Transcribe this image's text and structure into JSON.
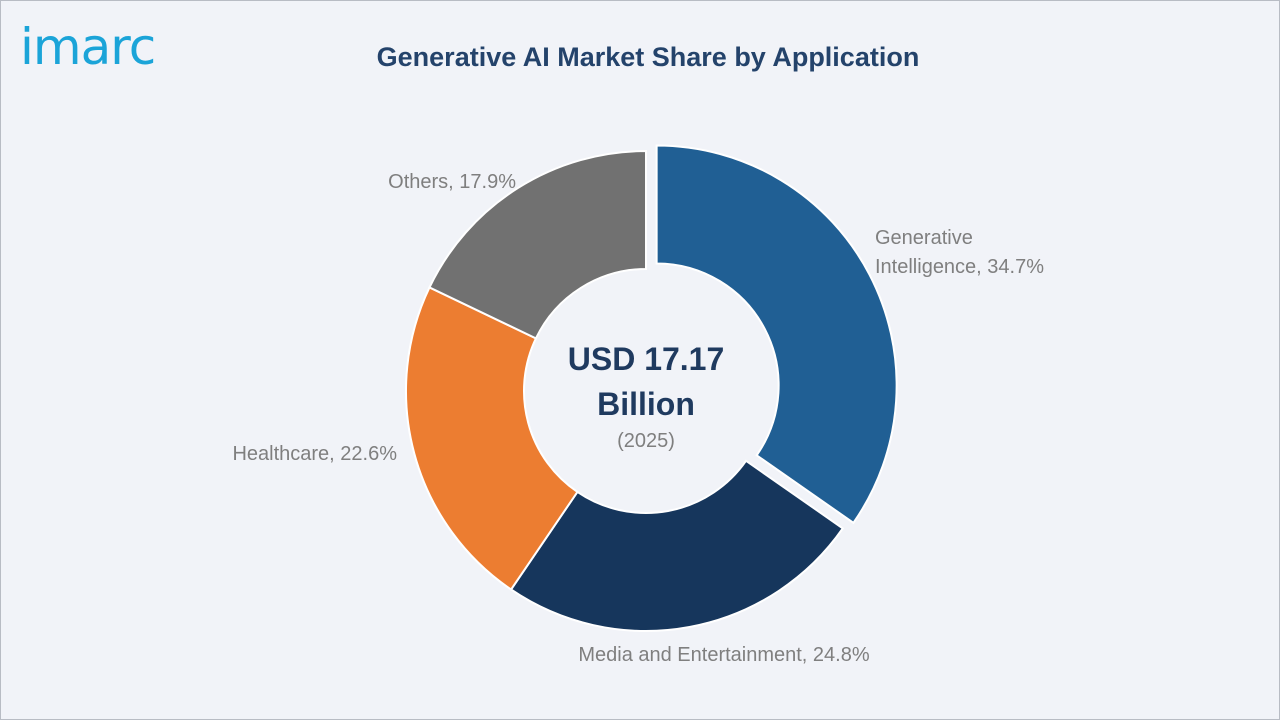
{
  "logo": {
    "text": "imarc",
    "color": "#1ba4d8"
  },
  "header": {
    "title": "Generative AI Market Share by Application"
  },
  "chart_data": {
    "type": "pie",
    "subtype": "donut",
    "title": "Generative AI Market Share by Application",
    "unit": "%",
    "center_label": {
      "line1": "USD 17.17",
      "line2": "Billion",
      "line3": "(2025)"
    },
    "slices": [
      {
        "name": "Generative Intelligence",
        "value": 34.7,
        "color": "#205f94",
        "exploded": true,
        "label_lines": [
          "Generative",
          "Intelligence, 34.7%"
        ]
      },
      {
        "name": "Media and Entertainment",
        "value": 24.8,
        "color": "#16365c",
        "exploded": false,
        "label_lines": [
          "Media and Entertainment, 24.8%"
        ]
      },
      {
        "name": "Healthcare",
        "value": 22.6,
        "color": "#ec7d31",
        "exploded": false,
        "label_lines": [
          "Healthcare, 22.6%"
        ]
      },
      {
        "name": "Others",
        "value": 17.9,
        "color": "#717171",
        "exploded": false,
        "label_lines": [
          "Others, 17.9%"
        ]
      }
    ]
  }
}
